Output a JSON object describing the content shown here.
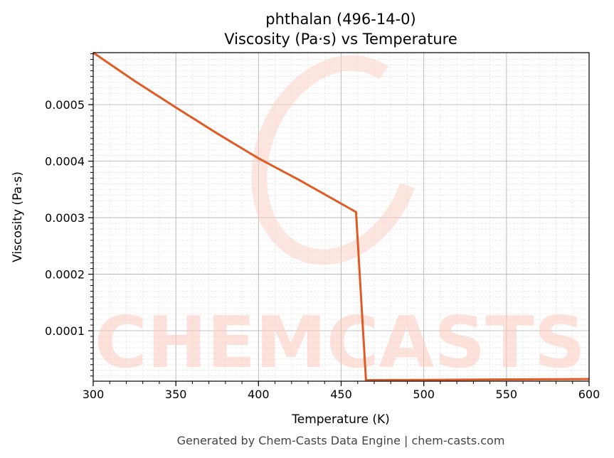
{
  "chart_data": {
    "type": "line",
    "title": "phthalan (496-14-0)",
    "subtitle": "Viscosity (Pa·s) vs Temperature",
    "xlabel": "Temperature (K)",
    "ylabel": "Viscosity (Pa·s)",
    "xlim": [
      300,
      600
    ],
    "ylim": [
      1.07e-05,
      0.000592
    ],
    "xticks": [
      300,
      350,
      400,
      450,
      500,
      550,
      600
    ],
    "yticks": [
      0.0001,
      0.0002,
      0.0003,
      0.0004,
      0.0005
    ],
    "ytick_labels": [
      "0.0001",
      "0.0002",
      "0.0003",
      "0.0004",
      "0.0005"
    ],
    "grid": true,
    "series": [
      {
        "color": "#e05a24",
        "x": [
          300,
          325,
          350,
          375,
          400,
          425,
          459,
          465,
          500,
          550,
          600
        ],
        "y": [
          0.000592,
          0.000542,
          0.000495,
          0.000449,
          0.000405,
          0.000366,
          0.00031,
          1.25e-05,
          1.3e-05,
          1.38e-05,
          1.45e-05
        ]
      }
    ],
    "watermark": "CHEMCASTS",
    "footer": "Generated by Chem-Casts Data Engine | chem-casts.com"
  }
}
